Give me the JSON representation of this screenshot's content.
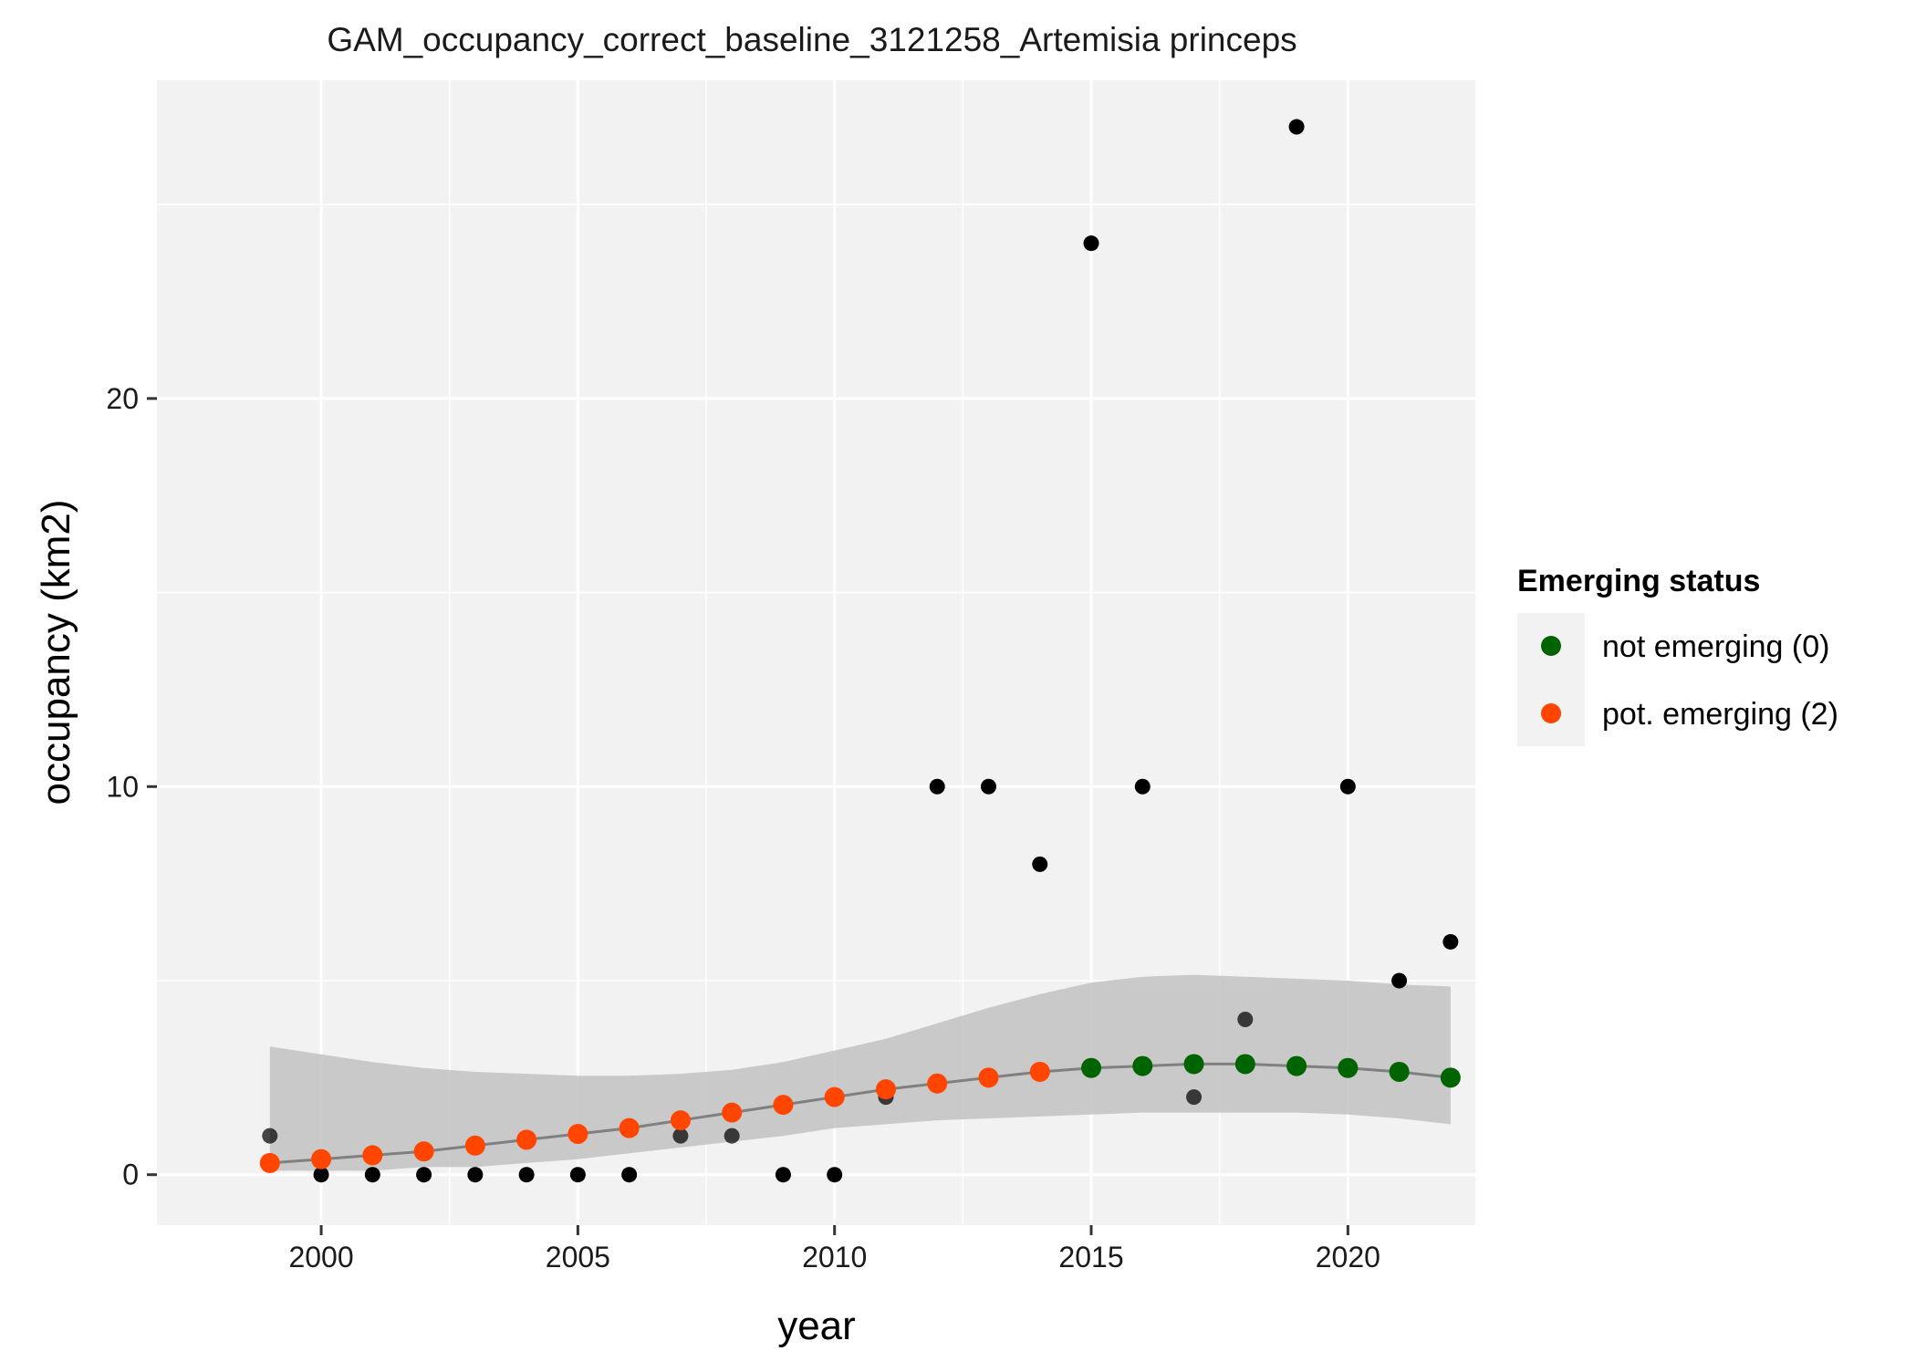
{
  "chart_data": {
    "type": "scatter",
    "title": "GAM_occupancy_correct_baseline_3121258_Artemisia princeps",
    "xlabel": "year",
    "ylabel": "occupancy (km2)",
    "xlim": [
      1996.8,
      2022.5
    ],
    "ylim": [
      -1.3,
      28.2
    ],
    "x_ticks": [
      2000,
      2005,
      2010,
      2015,
      2020
    ],
    "y_ticks": [
      0,
      10,
      20
    ],
    "x_minor_ticks": [
      2002.5,
      2007.5,
      2012.5,
      2017.5,
      2022.5
    ],
    "y_minor_ticks": [
      5,
      15,
      25
    ],
    "grid": true,
    "panel_background": "#f2f2f2",
    "legend": {
      "title": "Emerging status",
      "position": "right",
      "entries": [
        {
          "label": "not emerging (0)",
          "color": "#006400"
        },
        {
          "label": "pot. emerging (2)",
          "color": "#ff4500"
        }
      ]
    },
    "observed": {
      "color": "#000000",
      "points": [
        {
          "x": 1999,
          "y": 1
        },
        {
          "x": 2000,
          "y": 0
        },
        {
          "x": 2001,
          "y": 0
        },
        {
          "x": 2002,
          "y": 0
        },
        {
          "x": 2003,
          "y": 0
        },
        {
          "x": 2004,
          "y": 0
        },
        {
          "x": 2005,
          "y": 0
        },
        {
          "x": 2006,
          "y": 0
        },
        {
          "x": 2007,
          "y": 1
        },
        {
          "x": 2008,
          "y": 1
        },
        {
          "x": 2009,
          "y": 0
        },
        {
          "x": 2010,
          "y": 0
        },
        {
          "x": 2011,
          "y": 2
        },
        {
          "x": 2012,
          "y": 10
        },
        {
          "x": 2013,
          "y": 10
        },
        {
          "x": 2014,
          "y": 8
        },
        {
          "x": 2015,
          "y": 24
        },
        {
          "x": 2016,
          "y": 10
        },
        {
          "x": 2017,
          "y": 2
        },
        {
          "x": 2018,
          "y": 4
        },
        {
          "x": 2019,
          "y": 27
        },
        {
          "x": 2020,
          "y": 10
        },
        {
          "x": 2021,
          "y": 5
        },
        {
          "x": 2022,
          "y": 6
        }
      ]
    },
    "fitted": {
      "line_color": "#808080",
      "ribbon_color": "#bebebe",
      "points": [
        {
          "x": 1999,
          "y": 0.3,
          "lower": 0.1,
          "upper": 3.3,
          "status": "pot. emerging (2)"
        },
        {
          "x": 2000,
          "y": 0.4,
          "lower": 0.1,
          "upper": 3.1,
          "status": "pot. emerging (2)"
        },
        {
          "x": 2001,
          "y": 0.5,
          "lower": 0.1,
          "upper": 2.9,
          "status": "pot. emerging (2)"
        },
        {
          "x": 2002,
          "y": 0.6,
          "lower": 0.2,
          "upper": 2.75,
          "status": "pot. emerging (2)"
        },
        {
          "x": 2003,
          "y": 0.75,
          "lower": 0.2,
          "upper": 2.65,
          "status": "pot. emerging (2)"
        },
        {
          "x": 2004,
          "y": 0.9,
          "lower": 0.3,
          "upper": 2.6,
          "status": "pot. emerging (2)"
        },
        {
          "x": 2005,
          "y": 1.05,
          "lower": 0.4,
          "upper": 2.55,
          "status": "pot. emerging (2)"
        },
        {
          "x": 2006,
          "y": 1.2,
          "lower": 0.55,
          "upper": 2.55,
          "status": "pot. emerging (2)"
        },
        {
          "x": 2007,
          "y": 1.4,
          "lower": 0.7,
          "upper": 2.6,
          "status": "pot. emerging (2)"
        },
        {
          "x": 2008,
          "y": 1.6,
          "lower": 0.85,
          "upper": 2.7,
          "status": "pot. emerging (2)"
        },
        {
          "x": 2009,
          "y": 1.8,
          "lower": 1.0,
          "upper": 2.9,
          "status": "pot. emerging (2)"
        },
        {
          "x": 2010,
          "y": 2.0,
          "lower": 1.2,
          "upper": 3.2,
          "status": "pot. emerging (2)"
        },
        {
          "x": 2011,
          "y": 2.2,
          "lower": 1.3,
          "upper": 3.5,
          "status": "pot. emerging (2)"
        },
        {
          "x": 2012,
          "y": 2.35,
          "lower": 1.4,
          "upper": 3.9,
          "status": "pot. emerging (2)"
        },
        {
          "x": 2013,
          "y": 2.5,
          "lower": 1.45,
          "upper": 4.3,
          "status": "pot. emerging (2)"
        },
        {
          "x": 2014,
          "y": 2.65,
          "lower": 1.5,
          "upper": 4.65,
          "status": "pot. emerging (2)"
        },
        {
          "x": 2015,
          "y": 2.75,
          "lower": 1.55,
          "upper": 4.95,
          "status": "not emerging (0)"
        },
        {
          "x": 2016,
          "y": 2.8,
          "lower": 1.6,
          "upper": 5.1,
          "status": "not emerging (0)"
        },
        {
          "x": 2017,
          "y": 2.85,
          "lower": 1.6,
          "upper": 5.15,
          "status": "not emerging (0)"
        },
        {
          "x": 2018,
          "y": 2.85,
          "lower": 1.6,
          "upper": 5.1,
          "status": "not emerging (0)"
        },
        {
          "x": 2019,
          "y": 2.8,
          "lower": 1.6,
          "upper": 5.05,
          "status": "not emerging (0)"
        },
        {
          "x": 2020,
          "y": 2.75,
          "lower": 1.55,
          "upper": 5.0,
          "status": "not emerging (0)"
        },
        {
          "x": 2021,
          "y": 2.65,
          "lower": 1.45,
          "upper": 4.9,
          "status": "not emerging (0)"
        },
        {
          "x": 2022,
          "y": 2.5,
          "lower": 1.3,
          "upper": 4.85,
          "status": "not emerging (0)"
        }
      ]
    }
  }
}
